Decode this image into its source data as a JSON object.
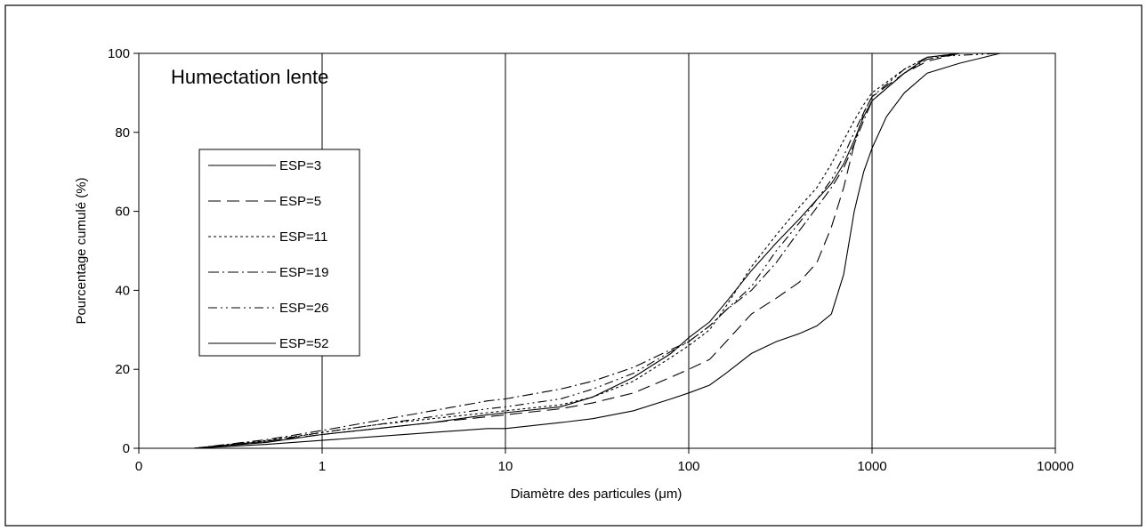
{
  "chart_data": {
    "type": "line",
    "title": "",
    "annotation": "Humectation lente",
    "xlabel": "Diamètre des particules (μm)",
    "ylabel": "Pourcentage cumulé (%)",
    "x_scale": "log",
    "xlim": [
      0.1,
      10000
    ],
    "ylim": [
      0,
      100
    ],
    "x_tick_labels": [
      "0",
      "1",
      "10",
      "100",
      "1000",
      "10000"
    ],
    "y_ticks": [
      0,
      20,
      40,
      60,
      80,
      100
    ],
    "grid": "vertical major gridlines",
    "legend_position": "left",
    "series": [
      {
        "name": "ESP=3",
        "dash": "solid",
        "x": [
          0.2,
          0.5,
          1,
          2,
          4,
          8,
          10,
          20,
          30,
          50,
          80,
          100,
          130,
          160,
          220,
          300,
          400,
          500,
          600,
          700,
          800,
          900,
          1000,
          1200,
          1500,
          2000,
          3000,
          5000
        ],
        "y": [
          0,
          1,
          2,
          3,
          4,
          5,
          5,
          6.5,
          7.5,
          9.5,
          12.5,
          14,
          16,
          19,
          24,
          27,
          29,
          31,
          34,
          44,
          60,
          70,
          76,
          84,
          90,
          95,
          97.5,
          100
        ]
      },
      {
        "name": "ESP=5",
        "dash": "dashed",
        "x": [
          0.2,
          0.5,
          1,
          2,
          4,
          8,
          10,
          20,
          30,
          50,
          80,
          100,
          130,
          160,
          220,
          300,
          400,
          500,
          600,
          700,
          800,
          900,
          1000,
          1500,
          2000,
          3000,
          5000
        ],
        "y": [
          0,
          1.8,
          3.5,
          5,
          6.5,
          8,
          8.5,
          10,
          11.5,
          14,
          18,
          20,
          22.5,
          27,
          34,
          38,
          42,
          47,
          56,
          66,
          77,
          85,
          89,
          95,
          98,
          100,
          100
        ]
      },
      {
        "name": "ESP=11",
        "dash": "dotted",
        "x": [
          0.2,
          0.5,
          1,
          2,
          4,
          8,
          10,
          20,
          30,
          50,
          80,
          100,
          130,
          160,
          220,
          300,
          400,
          500,
          600,
          700,
          800,
          900,
          1000,
          1500,
          2000,
          3000,
          5000
        ],
        "y": [
          0,
          2,
          4,
          6,
          7.5,
          9,
          9.5,
          11,
          13,
          17,
          23,
          26,
          30,
          36,
          46,
          54,
          61,
          66,
          72,
          78,
          83,
          87,
          90,
          96,
          99,
          100,
          100
        ]
      },
      {
        "name": "ESP=19",
        "dash": "dash-dot",
        "x": [
          0.2,
          0.5,
          1,
          2,
          4,
          8,
          10,
          20,
          30,
          50,
          80,
          100,
          130,
          160,
          220,
          300,
          400,
          500,
          600,
          700,
          800,
          900,
          1000,
          1500,
          2000,
          3000,
          5000
        ],
        "y": [
          0,
          2.2,
          4.5,
          7,
          9.5,
          12,
          12.5,
          15,
          17,
          20.5,
          25,
          27,
          31,
          35,
          40,
          47,
          55,
          61,
          66,
          71,
          77,
          83,
          88,
          95,
          98.5,
          100,
          100
        ]
      },
      {
        "name": "ESP=26",
        "dash": "dash-dot-dot",
        "x": [
          0.2,
          0.5,
          1,
          2,
          4,
          8,
          10,
          20,
          30,
          50,
          80,
          100,
          130,
          160,
          220,
          300,
          400,
          500,
          600,
          700,
          800,
          900,
          1000,
          1500,
          2000,
          3000,
          5000
        ],
        "y": [
          0,
          1.8,
          4,
          6,
          8,
          10,
          10.5,
          12.5,
          15,
          19,
          24.5,
          27,
          31,
          35,
          41,
          50,
          57,
          63,
          68,
          74,
          80,
          85,
          89,
          96,
          99,
          99.5,
          100
        ]
      },
      {
        "name": "ESP=52",
        "dash": "solid",
        "x": [
          0.2,
          0.5,
          1,
          2,
          4,
          8,
          10,
          20,
          30,
          50,
          80,
          100,
          130,
          160,
          220,
          300,
          400,
          500,
          600,
          700,
          800,
          900,
          1000,
          1500,
          2000,
          3000,
          5000
        ],
        "y": [
          0,
          1.5,
          3.5,
          5,
          6.5,
          8.5,
          9,
          10.5,
          13,
          18,
          24,
          28,
          32,
          37,
          45,
          52,
          58,
          63,
          67,
          72,
          78,
          84,
          88,
          95,
          99,
          100,
          100
        ]
      }
    ]
  }
}
